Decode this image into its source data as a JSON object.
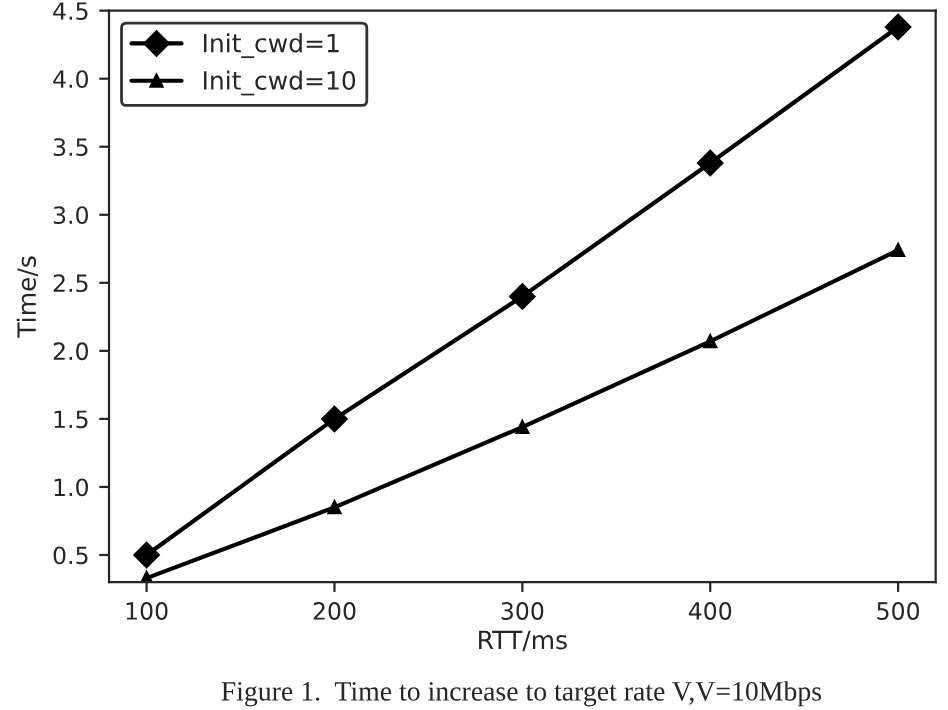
{
  "chart_data": {
    "type": "line",
    "xlabel": "RTT/ms",
    "ylabel": "Time/s",
    "x": [
      100,
      200,
      300,
      400,
      500
    ],
    "series": [
      {
        "name": "Init_cwd=1",
        "color": "#000000",
        "marker": "diamond",
        "values": [
          0.5,
          1.5,
          2.4,
          3.38,
          4.38
        ]
      },
      {
        "name": "Init_cwd=10",
        "color": "#000000",
        "marker": "triangle",
        "values": [
          0.33,
          0.85,
          1.44,
          2.07,
          2.74
        ]
      }
    ],
    "xlim": [
      80,
      520
    ],
    "ylim": [
      0.3,
      4.5
    ],
    "xticks": [
      100,
      200,
      300,
      400,
      500
    ],
    "yticks": [
      0.5,
      {
        "value": 1,
        "label": "1.0"
      },
      1.5,
      {
        "value": 2,
        "label": "2.0"
      },
      2.5,
      {
        "value": 3,
        "label": "3.0"
      },
      3.5,
      {
        "value": 4,
        "label": "4.0"
      },
      4.5
    ],
    "legend": "top left",
    "grid": false,
    "line_style": "solid",
    "annotations": [
      "Figure 1.  Time to increase to target rate V,V=10Mbps"
    ]
  }
}
